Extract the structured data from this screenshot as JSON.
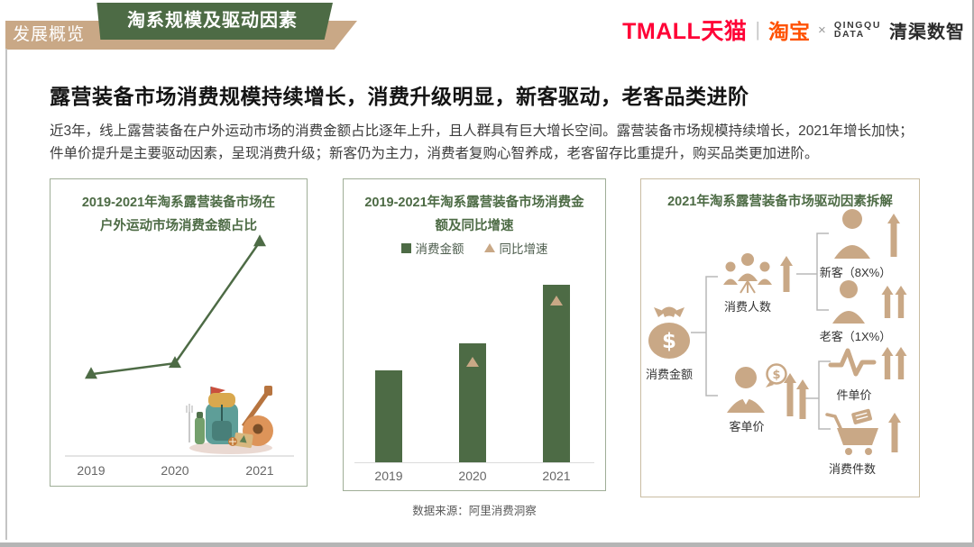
{
  "colors": {
    "green": "#4D6B45",
    "tan": "#C9A886",
    "tmall_red": "#FF0036",
    "taobao_orange": "#FF5100",
    "axis_gray": "#DCDCDC",
    "connector_gray": "#B8B8B8",
    "panel_border_green": "#9FAE97",
    "panel_border_tan": "#C9BDA3"
  },
  "header": {
    "breadcrumb": "发展概览",
    "badge": "淘系规模及驱动因素",
    "logos": {
      "tmall": "TMALL天猫",
      "divider": "|",
      "taobao": "淘宝",
      "cross": "×",
      "partner_en_line1": "QINGQU",
      "partner_en_line2": "DATA",
      "partner_cn": "清渠数智"
    }
  },
  "headline": "露营装备市场消费规模持续增长，消费升级明显，新客驱动，老客品类进阶",
  "body": {
    "line1": "近3年，线上露营装备在户外运动市场的消费金额占比逐年上升，且人群具有巨大增长空间。露营装备市场规模持续增长，2021年增长加快；",
    "line2": "件单价提升是主要驱动因素，呈现消费升级；新客仍为主力，消费者复购心智养成，老客留存比重提升，购买品类更加进阶。"
  },
  "panels": {
    "left": {
      "title_line1": "2019-2021年淘系露营装备市场在",
      "title_line2": "户外运动市场消费金额占比"
    },
    "middle": {
      "title_line1": "2019-2021年淘系露营装备市场消费金",
      "title_line2": "额及同比增速"
    },
    "right": {
      "title": "2021年淘系露营装备市场驱动因素拆解",
      "nodes": {
        "root": "消费金额",
        "buyers": "消费人数",
        "new_customers": "新客（8X%）",
        "old_customers": "老客（1X%）",
        "price_per_customer": "客单价",
        "price_per_item": "件单价",
        "items_per_purchase": "消费件数"
      }
    }
  },
  "source": "数据来源：阿里消费洞察",
  "chart_data": [
    {
      "type": "line",
      "title": "2019-2021年淘系露营装备市场在户外运动市场消费金额占比",
      "categories": [
        "2019",
        "2020",
        "2021"
      ],
      "values_relative": [
        0.37,
        0.42,
        0.97
      ],
      "marker": "triangle",
      "color": "#4D6B45",
      "xlabel": "",
      "ylabel": "",
      "note": "轴无数值标注；取值为按图中相对高度估算（0-1），呈2019小幅上升、2021陡增趋势"
    },
    {
      "type": "bar",
      "title": "2019-2021年淘系露营装备市场消费金额及同比增速",
      "categories": [
        "2019",
        "2020",
        "2021"
      ],
      "series": [
        {
          "name": "消费金额",
          "type": "bar",
          "color": "#4D6B45",
          "values_relative": [
            0.52,
            0.67,
            1.0
          ]
        },
        {
          "name": "同比增速",
          "type": "triangle-marker",
          "color": "#C9A886",
          "values_relative": [
            null,
            0.5,
            0.82
          ]
        }
      ],
      "legend_position": "top",
      "xlabel": "",
      "ylabel": "",
      "note": "轴无数值标注；相对高度按像素估算（0-1），2019年无同比增速标记"
    }
  ]
}
